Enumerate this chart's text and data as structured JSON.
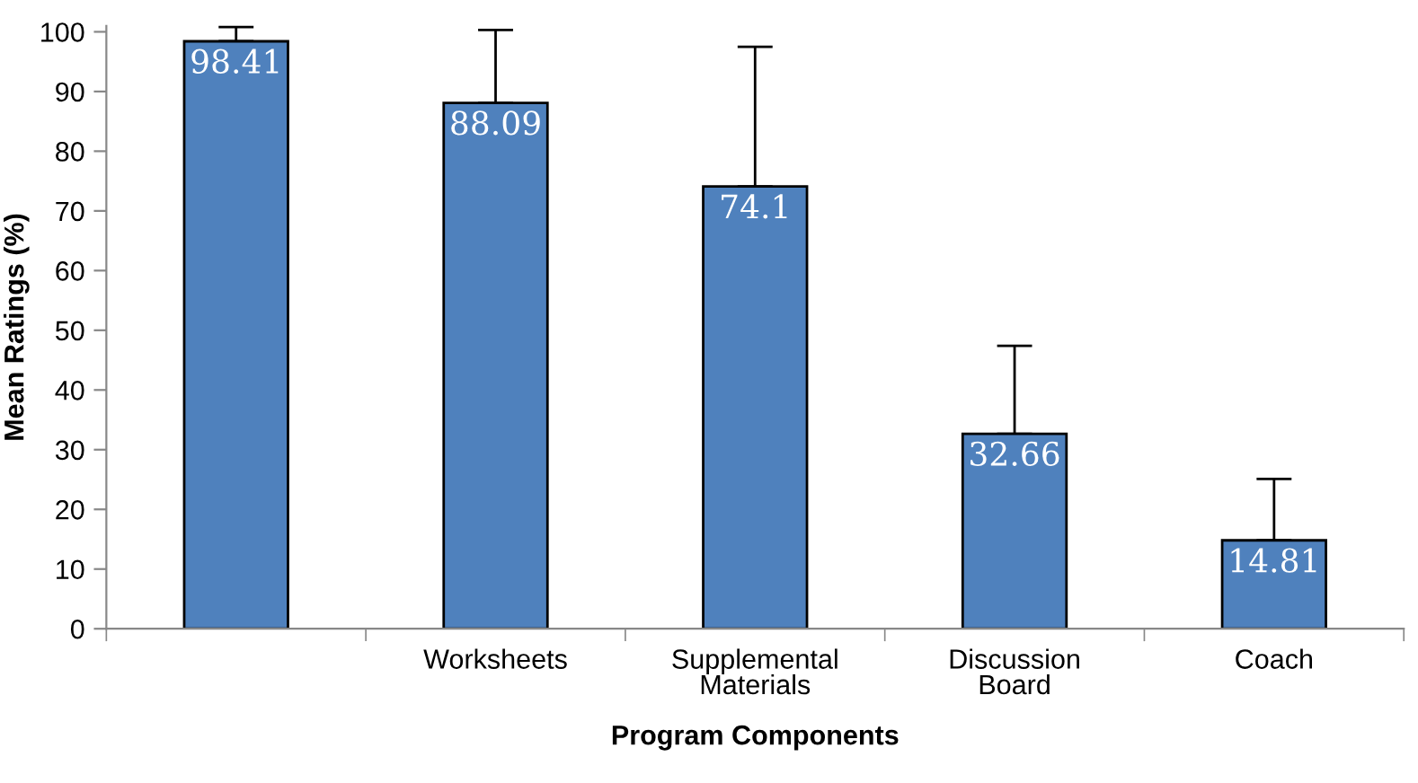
{
  "chart_data": {
    "type": "bar",
    "xlabel": "Program Components",
    "ylabel": "Mean Ratings (%)",
    "categories": [
      null,
      "Worksheets",
      "Supplemental Materials",
      "Discussion Board",
      "Coach"
    ],
    "values": [
      98.41,
      88.09,
      74.1,
      32.66,
      14.81
    ],
    "errors": [
      [
        98.41,
        100.8
      ],
      [
        88.09,
        100.3
      ],
      [
        74.1,
        97.5
      ],
      [
        32.66,
        47.4
      ],
      [
        14.81,
        25.1
      ]
    ],
    "color": "#4f81bd",
    "data_labels": true,
    "grid": false,
    "legend": false,
    "ylim": [
      0,
      101
    ],
    "yticks": [
      0,
      10,
      20,
      30,
      40,
      50,
      60,
      70,
      80,
      90,
      100
    ]
  }
}
